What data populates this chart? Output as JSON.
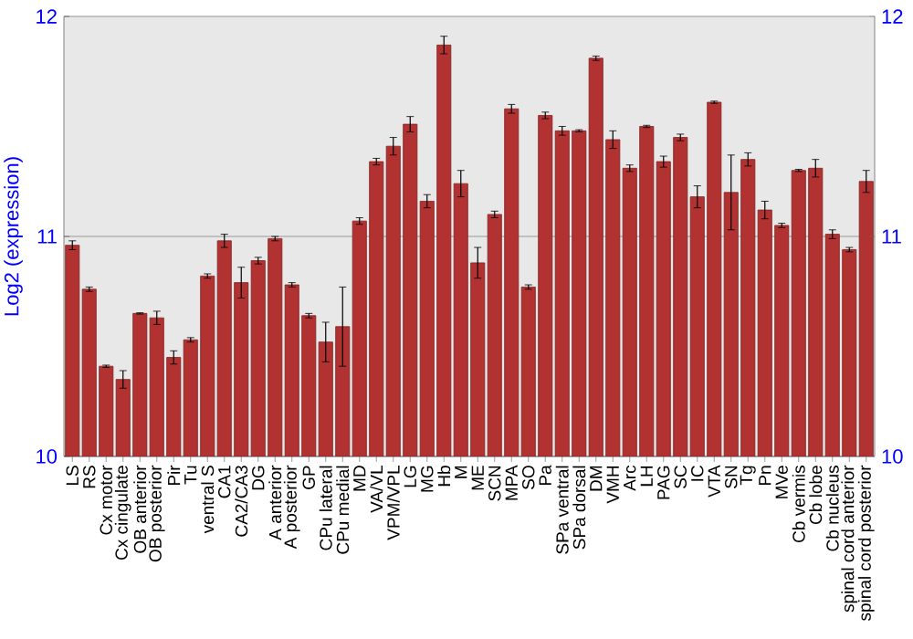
{
  "chart_data": {
    "type": "bar",
    "ylabel": "Log2 (expression)",
    "categories": [
      "LS",
      "RS",
      "Cx motor",
      "Cx cingulate",
      "OB anterior",
      "OB posterior",
      "Pir",
      "Tu",
      "ventral S",
      "CA1",
      "CA2/CA3",
      "DG",
      "A anterior",
      "A posterior",
      "GP",
      "CPu lateral",
      "CPu medial",
      "MD",
      "VA/VL",
      "VPM/VPL",
      "LG",
      "MG",
      "Hb",
      "M",
      "ME",
      "SCN",
      "MPA",
      "SO",
      "Pa",
      "SPa ventral",
      "SPa dorsal",
      "DM",
      "VMH",
      "Arc",
      "LH",
      "PAG",
      "SC",
      "IC",
      "VTA",
      "SN",
      "Tg",
      "Pn",
      "MVe",
      "Cb vermis",
      "Cb lobe",
      "Cb nucleus",
      "spinal cord anterior",
      "spinal cord posterior"
    ],
    "values": [
      10.96,
      10.76,
      10.41,
      10.35,
      10.65,
      10.63,
      10.45,
      10.53,
      10.82,
      10.98,
      10.79,
      10.89,
      10.99,
      10.78,
      10.64,
      10.52,
      10.59,
      11.07,
      11.34,
      11.41,
      11.51,
      11.16,
      11.87,
      11.24,
      10.88,
      11.1,
      11.58,
      10.77,
      11.55,
      11.48,
      11.48,
      11.81,
      11.44,
      11.31,
      11.5,
      11.34,
      11.45,
      11.18,
      11.61,
      11.2,
      11.35,
      11.12,
      11.05,
      11.3,
      11.31,
      11.01,
      10.94,
      11.25
    ],
    "errors": [
      0.02,
      0.01,
      0.005,
      0.04,
      0.003,
      0.03,
      0.03,
      0.01,
      0.01,
      0.03,
      0.07,
      0.015,
      0.01,
      0.01,
      0.01,
      0.09,
      0.18,
      0.015,
      0.015,
      0.04,
      0.035,
      0.03,
      0.04,
      0.06,
      0.07,
      0.015,
      0.02,
      0.01,
      0.015,
      0.02,
      0.005,
      0.01,
      0.04,
      0.015,
      0.005,
      0.025,
      0.015,
      0.05,
      0.005,
      0.17,
      0.03,
      0.04,
      0.01,
      0.005,
      0.04,
      0.02,
      0.01,
      0.05
    ],
    "color": "#b23232",
    "ylim": [
      10,
      12
    ],
    "yticks": [
      10,
      11,
      12
    ],
    "y2lim": [
      10,
      12
    ],
    "y2ticks": [
      10,
      11,
      12
    ],
    "grid": "y"
  }
}
